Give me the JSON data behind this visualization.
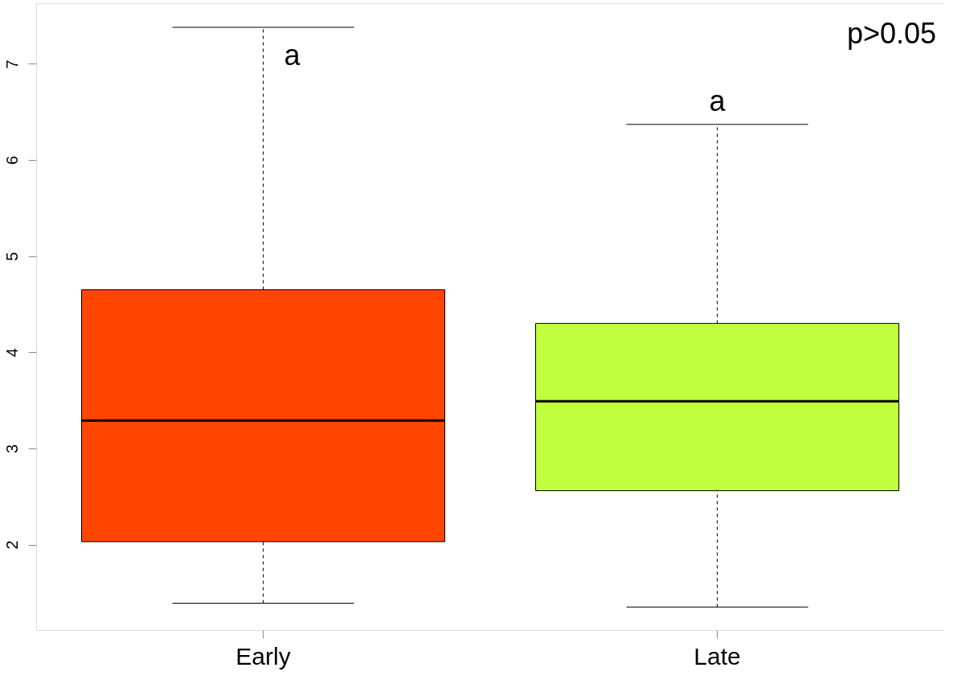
{
  "chart_data": {
    "type": "box",
    "categories": [
      "Early",
      "Late"
    ],
    "boxes": [
      {
        "low": 1.39,
        "q1": 2.03,
        "median": 3.29,
        "q3": 4.65,
        "high": 7.38
      },
      {
        "low": 1.35,
        "q1": 2.56,
        "median": 3.49,
        "q3": 4.3,
        "high": 6.37
      }
    ],
    "colors": [
      "#ff4500",
      "#c0ff3e"
    ],
    "ylim": [
      1.11,
      7.63
    ],
    "yticks": [
      2,
      3,
      4,
      5,
      6,
      7
    ],
    "grid": false,
    "annotations": [
      "a",
      "a",
      "p>0.05"
    ]
  }
}
